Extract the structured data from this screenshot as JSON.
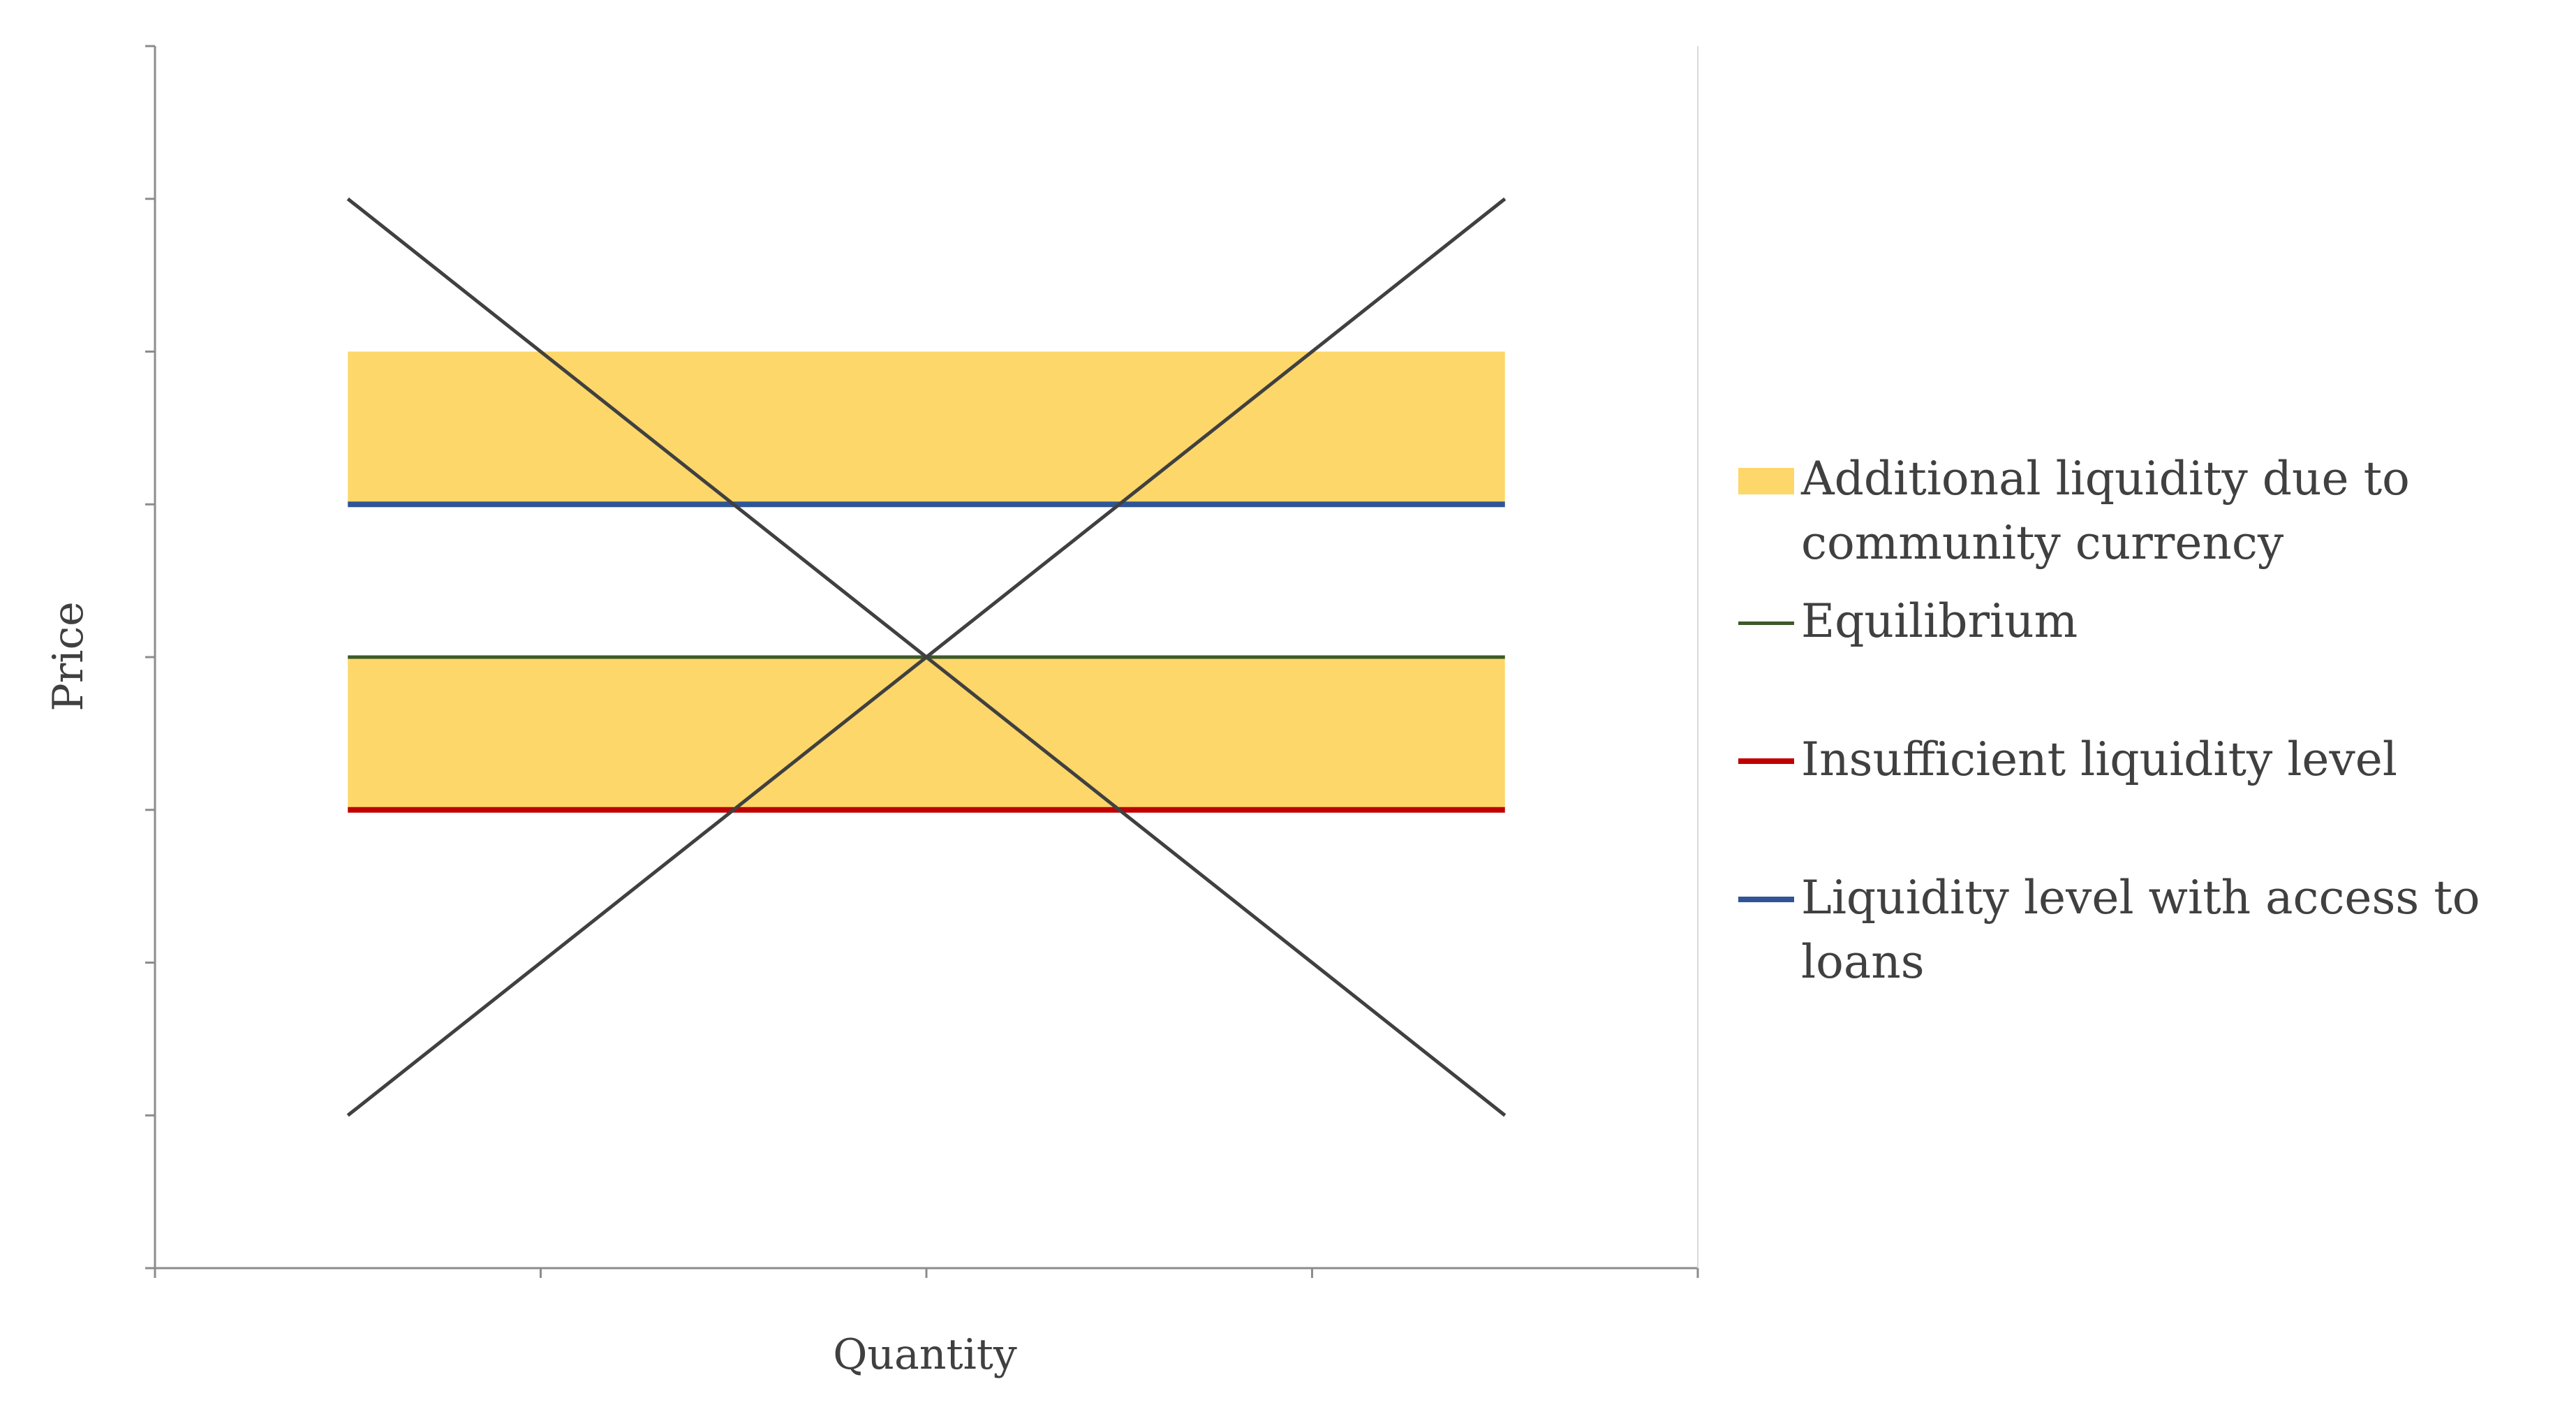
{
  "chart_data": {
    "type": "line",
    "title": "",
    "xlabel": "Quantity",
    "ylabel": "Price",
    "xlim": [
      0,
      4
    ],
    "ylim": [
      0,
      8
    ],
    "x_ticks_count": 4,
    "y_ticks_count": 8,
    "tick_labels_shown": false,
    "grid": false,
    "legend_position": "right",
    "bands": [
      {
        "name": "Additional liquidity due to community currency",
        "x": [
          0.5,
          3.5
        ],
        "y": [
          5,
          6
        ],
        "color": "#FDD76A"
      },
      {
        "name": "Additional liquidity due to community currency",
        "x": [
          0.5,
          3.5
        ],
        "y": [
          3,
          4
        ],
        "color": "#FDD76A"
      }
    ],
    "levels": [
      {
        "name": "Equilibrium",
        "x": [
          0.5,
          3.5
        ],
        "y": 4,
        "color": "#3B5A2B"
      },
      {
        "name": "Insufficient liquidity level",
        "x": [
          0.5,
          3.5
        ],
        "y": 3,
        "color": "#C00000"
      },
      {
        "name": "Liquidity level with access to loans",
        "x": [
          0.5,
          3.5
        ],
        "y": 5,
        "color": "#2F5597"
      }
    ],
    "curves": [
      {
        "x": [
          0.5,
          3.5
        ],
        "y": [
          7,
          1
        ],
        "color": "#404040"
      },
      {
        "x": [
          0.5,
          3.5
        ],
        "y": [
          1,
          7
        ],
        "color": "#404040"
      }
    ]
  },
  "legend": [
    {
      "label": "Additional liquidity due to community currency",
      "kind": "band",
      "color": "#FDD76A"
    },
    {
      "label": "Equilibrium",
      "kind": "line",
      "color": "#3B5A2B"
    },
    {
      "label": "Insufficient liquidity level",
      "kind": "line",
      "color": "#C00000"
    },
    {
      "label": "Liquidity level with access to loans",
      "kind": "line",
      "color": "#2F5597"
    }
  ]
}
